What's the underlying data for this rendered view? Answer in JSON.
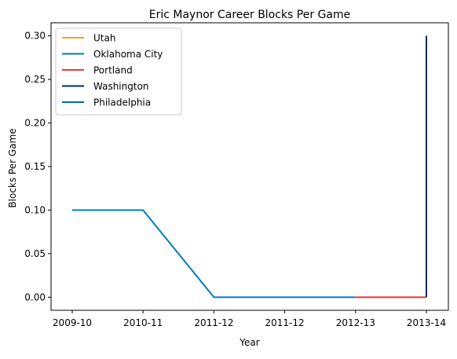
{
  "chart_data": {
    "type": "line",
    "title": "Eric Maynor Career Blocks Per Game",
    "xlabel": "Year",
    "ylabel": "Blocks Per Game",
    "x_tick_labels": [
      "2009-10",
      "2010-11",
      "2011-12",
      "2011-12",
      "2012-13",
      "2013-14"
    ],
    "ylim": [
      -0.015,
      0.315
    ],
    "y_ticks": [
      "0.00",
      "0.05",
      "0.10",
      "0.15",
      "0.20",
      "0.25",
      "0.30"
    ],
    "grid": false,
    "legend_position": "top-left",
    "series": [
      {
        "name": "Utah",
        "color": "#F9A01B",
        "points": []
      },
      {
        "name": "Oklahoma City",
        "color": "#007AC1",
        "points": [
          {
            "x": "2009-10",
            "y": 0.1
          },
          {
            "x": "2010-11",
            "y": 0.1
          },
          {
            "x": "2011-12",
            "y": 0.0
          },
          {
            "x": "2011-12",
            "y": 0.0
          },
          {
            "x": "2012-13",
            "y": 0.0
          }
        ]
      },
      {
        "name": "Portland",
        "color": "#E03A3E",
        "points": [
          {
            "x": "2012-13",
            "y": 0.0
          },
          {
            "x": "2013-14",
            "y": 0.0
          }
        ]
      },
      {
        "name": "Washington",
        "color": "#002B5C",
        "points": [
          {
            "x": "2013-14",
            "y": 0.0
          },
          {
            "x": "2013-14",
            "y": 0.3
          }
        ]
      },
      {
        "name": "Philadelphia",
        "color": "#006BB6",
        "points": []
      }
    ]
  }
}
